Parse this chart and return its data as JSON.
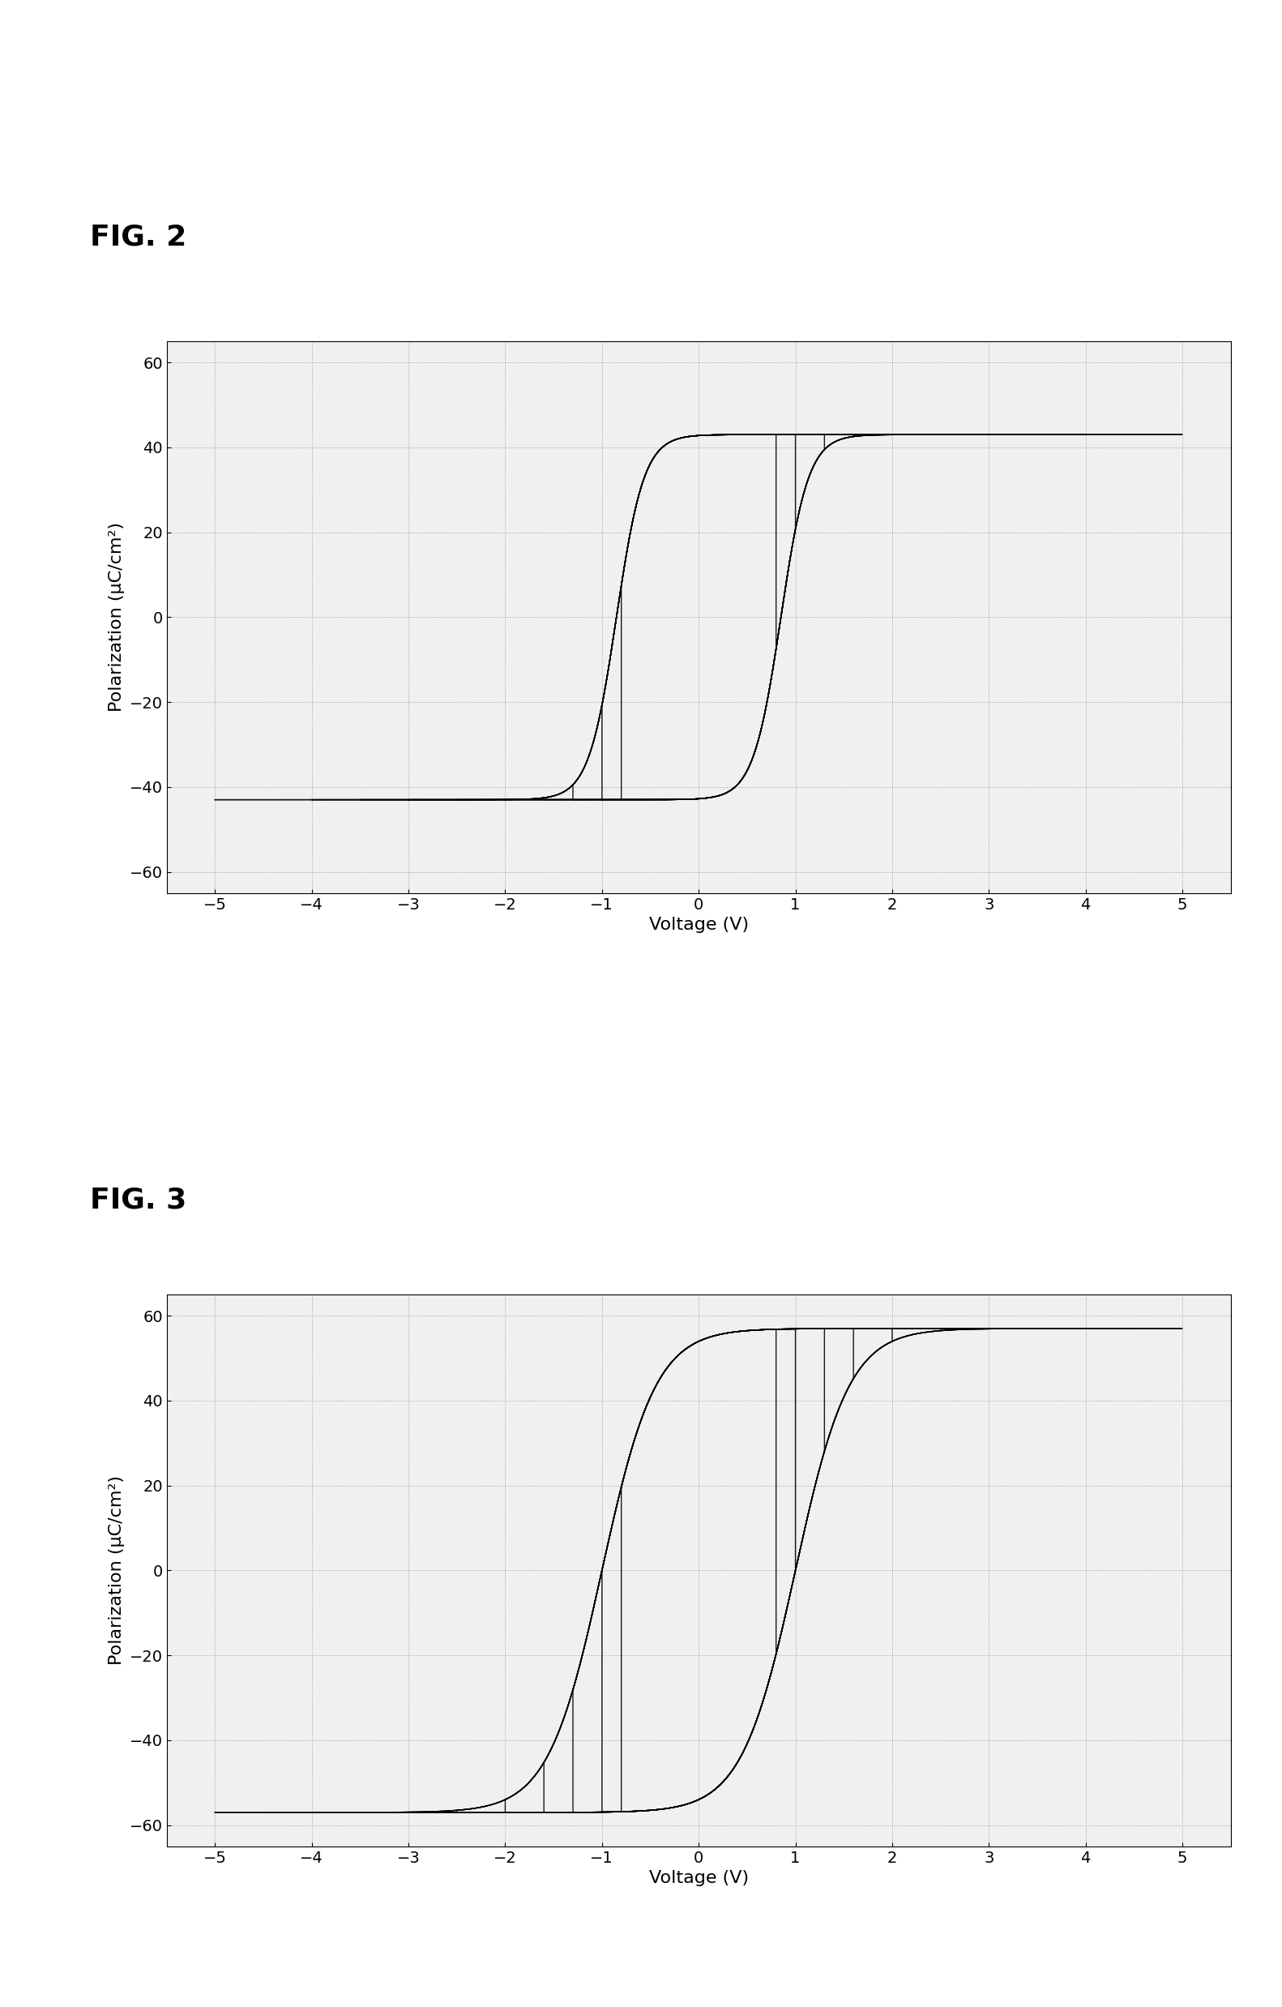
{
  "fig2_title": "FIG. 2",
  "fig3_title": "FIG. 3",
  "xlabel": "Voltage (V)",
  "ylabel": "Polarization (μC／cm²)",
  "xlim": [
    -5.5,
    5.5
  ],
  "ylim": [
    -65,
    65
  ],
  "xticks": [
    -5,
    -4,
    -3,
    -2,
    -1,
    0,
    1,
    2,
    3,
    4,
    5
  ],
  "yticks": [
    -60,
    -40,
    -20,
    0,
    20,
    40,
    60
  ],
  "background_color": "#ffffff",
  "plot_bg_color": "#f0f0f0",
  "grid_color": "#888888",
  "fig2_Vmax_list": [
    0.8,
    1.0,
    1.3,
    1.6,
    2.0,
    2.5,
    3.0,
    3.5,
    4.0,
    5.0
  ],
  "fig3_Vmax_list": [
    0.8,
    1.0,
    1.3,
    1.6,
    2.0,
    2.5,
    3.2,
    3.8,
    4.5,
    5.0
  ],
  "fig2_Psat": 43.0,
  "fig2_Ec": 0.85,
  "fig2_steep": 3.5,
  "fig3_Psat": 57.0,
  "fig3_Ec": 1.0,
  "fig3_steep": 1.8,
  "title_fontsize": 26,
  "label_fontsize": 16,
  "tick_fontsize": 14,
  "lw": 1.0
}
